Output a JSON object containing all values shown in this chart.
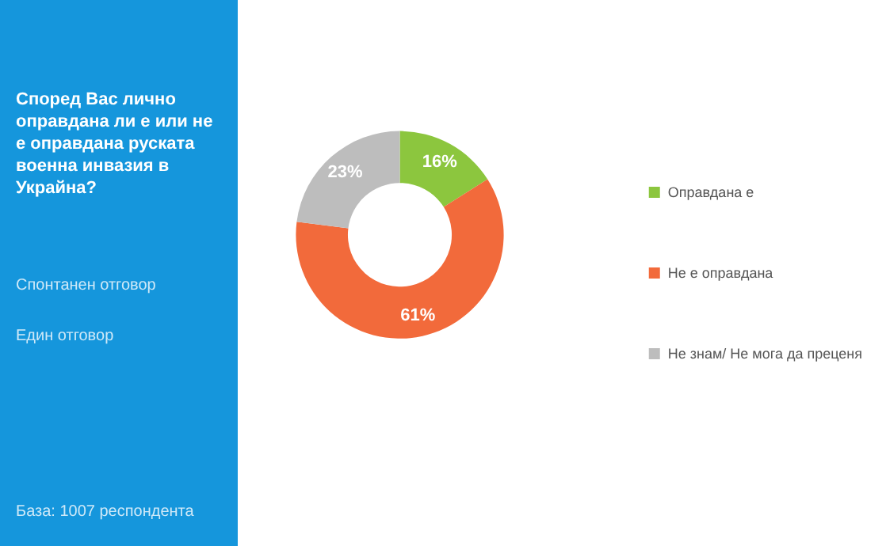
{
  "chart_data": {
    "type": "donut",
    "title": "Според Вас лично оправдана ли е или не е оправдана руската военна инвазия в Украйна?",
    "annotations": [
      "Спонтанен отговор",
      "Един отговор",
      "База: 1007 респондента"
    ],
    "categories": [
      "Оправдана е",
      "Не е оправдана",
      "Не знам/ Не мога да преценя"
    ],
    "values": [
      16,
      61,
      23
    ],
    "colors": [
      "#8cc63e",
      "#f26a3b",
      "#bdbdbd"
    ],
    "value_labels": [
      "16%",
      "61%",
      "23%"
    ],
    "legend": "right"
  }
}
